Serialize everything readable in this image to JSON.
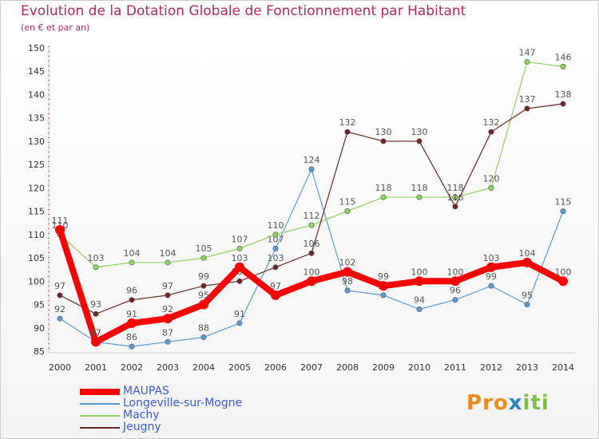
{
  "title": "Evolution de la Dotation Globale de Fonctionnement par Habitant",
  "subtitle": "(en € et par an)",
  "logo": {
    "text": "Proxiti",
    "colors": [
      "#f08a1c",
      "#f08a1c",
      "#f08a1c",
      "#2f7fd1",
      "#7dc242",
      "#7dc242",
      "#7dc242"
    ]
  },
  "chart_data": {
    "type": "line",
    "title": "Evolution de la Dotation Globale de Fonctionnement par Habitant",
    "subtitle": "(en € et par an)",
    "xlabel": "",
    "ylabel": "",
    "ylim": [
      85,
      150
    ],
    "yticks": [
      85,
      90,
      95,
      100,
      105,
      110,
      115,
      120,
      125,
      130,
      135,
      140,
      145,
      150
    ],
    "grid": false,
    "legend": "bottom-left",
    "x": [
      "2000",
      "2001",
      "2002",
      "2003",
      "2004",
      "2005",
      "2006",
      "2007",
      "2008",
      "2009",
      "2010",
      "2011",
      "2012",
      "2013",
      "2014"
    ],
    "series": [
      {
        "name": "Longeville-sur-Mogne",
        "color": "#5b9bd5",
        "width": 1.2,
        "values": [
          92,
          87,
          86,
          87,
          88,
          91,
          107,
          124,
          98,
          97,
          94,
          96,
          99,
          95,
          115
        ]
      },
      {
        "name": "Machy",
        "color": "#8ed35a",
        "width": 1.2,
        "values": [
          110,
          103,
          104,
          104,
          105,
          107,
          110,
          112,
          115,
          118,
          118,
          118,
          120,
          147,
          146
        ]
      },
      {
        "name": "Jeugny",
        "color": "#6e2525",
        "width": 1.2,
        "values": [
          97,
          93,
          96,
          97,
          99,
          100,
          103,
          106,
          132,
          130,
          130,
          116,
          132,
          137,
          138
        ]
      },
      {
        "name": "MAUPAS",
        "color": "#ff0000",
        "width": 8,
        "values": [
          111,
          87,
          91,
          92,
          95,
          103,
          97,
          100,
          102,
          99,
          100,
          100,
          103,
          104,
          100
        ]
      }
    ]
  }
}
